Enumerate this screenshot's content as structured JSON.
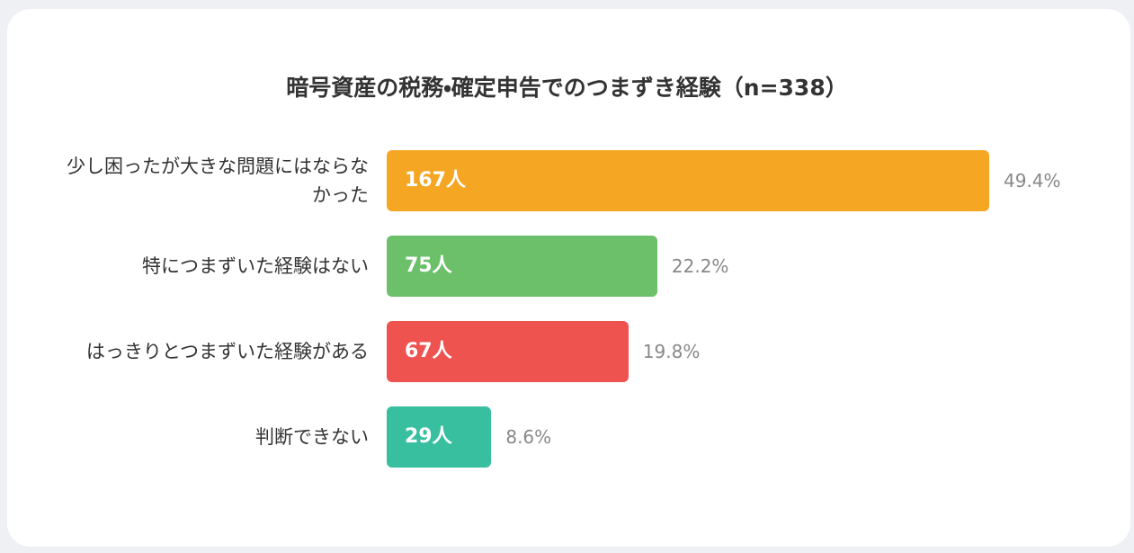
{
  "chart_data": {
    "type": "bar",
    "orientation": "horizontal",
    "title": "暗号資産の税務・確定申告でのつまずき経験（n=338）",
    "categories": [
      "少し困ったが大きな問題にはならなかった",
      "特につまずいた経験はない",
      "はっきりとつまずいた経験がある",
      "判断できない"
    ],
    "values": [
      167,
      75,
      67,
      29
    ],
    "value_labels": [
      "167人",
      "75人",
      "67人",
      "29人"
    ],
    "percentages": [
      49.4,
      22.2,
      19.8,
      8.6
    ],
    "percentage_labels": [
      "49.4%",
      "22.2%",
      "19.8%",
      "8.6%"
    ],
    "colors": [
      "#f5a623",
      "#6cc06a",
      "#ef5350",
      "#38bfa0"
    ]
  }
}
